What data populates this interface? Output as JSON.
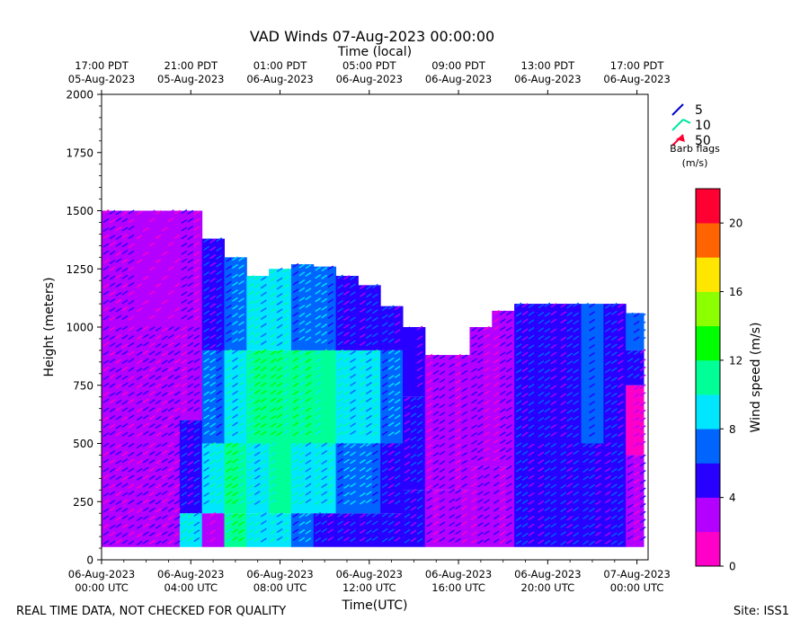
{
  "chart_data": {
    "type": "heatmap",
    "title": "VAD Winds 07-Aug-2023 00:00:00",
    "top_axis_label": "Time (local)",
    "xlabel": "Time(UTC)",
    "ylabel": "Height (meters)",
    "ylim": [
      0,
      2000
    ],
    "xlim_hours_utc": [
      0,
      24.5
    ],
    "y_ticks": [
      "0",
      "250",
      "500",
      "750",
      "1000",
      "1250",
      "1500",
      "1750",
      "2000"
    ],
    "x_ticks": [
      {
        "line1": "06-Aug-2023",
        "line2": "00:00 UTC"
      },
      {
        "line1": "06-Aug-2023",
        "line2": "04:00 UTC"
      },
      {
        "line1": "06-Aug-2023",
        "line2": "08:00 UTC"
      },
      {
        "line1": "06-Aug-2023",
        "line2": "12:00 UTC"
      },
      {
        "line1": "06-Aug-2023",
        "line2": "16:00 UTC"
      },
      {
        "line1": "06-Aug-2023",
        "line2": "20:00 UTC"
      },
      {
        "line1": "07-Aug-2023",
        "line2": "00:00 UTC"
      }
    ],
    "top_ticks": [
      {
        "line1": "17:00 PDT",
        "line2": "05-Aug-2023"
      },
      {
        "line1": "21:00 PDT",
        "line2": "05-Aug-2023"
      },
      {
        "line1": "01:00 PDT",
        "line2": "06-Aug-2023"
      },
      {
        "line1": "05:00 PDT",
        "line2": "06-Aug-2023"
      },
      {
        "line1": "09:00 PDT",
        "line2": "06-Aug-2023"
      },
      {
        "line1": "13:00 PDT",
        "line2": "06-Aug-2023"
      },
      {
        "line1": "17:00 PDT",
        "line2": "06-Aug-2023"
      }
    ],
    "colorbar": {
      "label": "Wind speed (m/s)",
      "range": [
        0,
        22
      ],
      "ticks": [
        "0",
        "4",
        "8",
        "12",
        "16",
        "20"
      ],
      "colors": [
        "#ff00c8",
        "#b400ff",
        "#2800ff",
        "#0064ff",
        "#00e6ff",
        "#00ff96",
        "#00ff00",
        "#8cff00",
        "#ffe600",
        "#ff6400",
        "#ff0032"
      ]
    },
    "barb_legend": {
      "entries": [
        {
          "label": "5",
          "color": "#0000cc"
        },
        {
          "label": "10",
          "color": "#00e6a0"
        },
        {
          "label": "50",
          "color": "#ff0032"
        }
      ],
      "caption_line1": "Barb flags",
      "caption_line2": "(m/s)"
    },
    "cells": [
      [
        0.0,
        1.5,
        0,
        500,
        2.5
      ],
      [
        0.0,
        1.5,
        500,
        1000,
        3.0
      ],
      [
        0.0,
        1.5,
        1000,
        1500,
        3.0
      ],
      [
        1.5,
        3.5,
        0,
        500,
        3.0
      ],
      [
        1.5,
        3.5,
        500,
        1000,
        2.5
      ],
      [
        1.5,
        3.5,
        1000,
        1500,
        2.0
      ],
      [
        3.5,
        4.5,
        0,
        200,
        8.5
      ],
      [
        3.5,
        4.5,
        200,
        600,
        5.5
      ],
      [
        3.5,
        4.5,
        600,
        1000,
        3.5
      ],
      [
        3.5,
        4.5,
        1000,
        1500,
        2.5
      ],
      [
        4.5,
        5.5,
        0,
        200,
        2.0
      ],
      [
        4.5,
        5.5,
        200,
        500,
        9.0
      ],
      [
        4.5,
        5.5,
        500,
        900,
        7.0
      ],
      [
        4.5,
        5.5,
        900,
        1380,
        5.5
      ],
      [
        5.5,
        6.5,
        0,
        200,
        11.0
      ],
      [
        5.5,
        6.5,
        200,
        500,
        10.5
      ],
      [
        5.5,
        6.5,
        500,
        900,
        9.0
      ],
      [
        5.5,
        6.5,
        900,
        1300,
        6.5
      ],
      [
        6.5,
        7.5,
        0,
        200,
        9.5
      ],
      [
        6.5,
        7.5,
        200,
        500,
        9.0
      ],
      [
        6.5,
        7.5,
        500,
        900,
        10.5
      ],
      [
        6.5,
        7.5,
        900,
        1220,
        8.5
      ],
      [
        7.5,
        8.5,
        0,
        200,
        8.5
      ],
      [
        7.5,
        8.5,
        200,
        500,
        10.0
      ],
      [
        7.5,
        8.5,
        500,
        900,
        11.0
      ],
      [
        7.5,
        8.5,
        900,
        1250,
        9.5
      ],
      [
        8.5,
        9.5,
        0,
        200,
        6.5
      ],
      [
        8.5,
        9.5,
        200,
        500,
        9.5
      ],
      [
        8.5,
        9.5,
        500,
        900,
        10.5
      ],
      [
        8.5,
        9.5,
        900,
        1270,
        7.5
      ],
      [
        9.5,
        10.5,
        0,
        200,
        5.5
      ],
      [
        9.5,
        10.5,
        200,
        500,
        8.5
      ],
      [
        9.5,
        10.5,
        500,
        900,
        10.0
      ],
      [
        9.5,
        10.5,
        900,
        1260,
        6.5
      ],
      [
        10.5,
        11.5,
        0,
        200,
        4.5
      ],
      [
        10.5,
        11.5,
        200,
        500,
        7.5
      ],
      [
        10.5,
        11.5,
        500,
        900,
        9.5
      ],
      [
        10.5,
        11.5,
        900,
        1220,
        5.5
      ],
      [
        11.5,
        12.5,
        0,
        200,
        5.0
      ],
      [
        11.5,
        12.5,
        200,
        500,
        6.5
      ],
      [
        11.5,
        12.5,
        500,
        900,
        8.5
      ],
      [
        11.5,
        12.5,
        900,
        1180,
        5.0
      ],
      [
        12.5,
        13.5,
        0,
        200,
        4.5
      ],
      [
        12.5,
        13.5,
        200,
        500,
        5.5
      ],
      [
        12.5,
        13.5,
        500,
        900,
        7.5
      ],
      [
        12.5,
        13.5,
        900,
        1090,
        4.5
      ],
      [
        13.5,
        14.5,
        0,
        300,
        4.5
      ],
      [
        13.5,
        14.5,
        300,
        700,
        4.5
      ],
      [
        13.5,
        14.5,
        700,
        1000,
        4.0
      ],
      [
        14.5,
        15.5,
        0,
        300,
        3.5
      ],
      [
        14.5,
        15.5,
        300,
        880,
        3.5
      ],
      [
        15.5,
        16.5,
        0,
        300,
        3.0
      ],
      [
        15.5,
        16.5,
        300,
        880,
        3.0
      ],
      [
        16.5,
        17.5,
        0,
        400,
        3.5
      ],
      [
        16.5,
        17.5,
        400,
        1000,
        3.0
      ],
      [
        17.5,
        18.5,
        0,
        400,
        3.0
      ],
      [
        17.5,
        18.5,
        400,
        1070,
        2.5
      ],
      [
        18.5,
        19.5,
        0,
        500,
        4.5
      ],
      [
        18.5,
        19.5,
        500,
        1100,
        4.5
      ],
      [
        19.5,
        20.5,
        0,
        500,
        5.5
      ],
      [
        19.5,
        20.5,
        500,
        1100,
        5.0
      ],
      [
        20.5,
        21.5,
        0,
        500,
        5.0
      ],
      [
        20.5,
        21.5,
        500,
        1100,
        5.5
      ],
      [
        21.5,
        22.5,
        0,
        500,
        5.5
      ],
      [
        21.5,
        22.5,
        500,
        1100,
        6.0
      ],
      [
        22.5,
        23.5,
        0,
        500,
        5.0
      ],
      [
        22.5,
        23.5,
        500,
        1100,
        5.5
      ],
      [
        23.5,
        24.3,
        0,
        450,
        3.5
      ],
      [
        23.5,
        24.3,
        450,
        750,
        1.5
      ],
      [
        23.5,
        24.3,
        750,
        900,
        4.5
      ],
      [
        23.5,
        24.3,
        900,
        1060,
        6.0
      ]
    ]
  },
  "footer": {
    "left": "REAL TIME DATA, NOT CHECKED FOR QUALITY",
    "right": "Site: ISS1"
  }
}
